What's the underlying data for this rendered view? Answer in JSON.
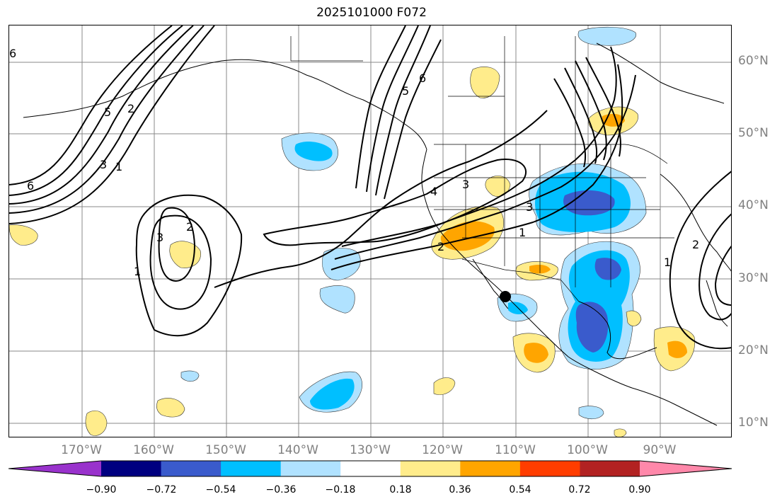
{
  "title": "2025101000 F072",
  "map": {
    "lat_labels": [
      "60°N",
      "50°N",
      "40°N",
      "30°N",
      "20°N",
      "10°N"
    ],
    "lon_labels": [
      "170°W",
      "160°W",
      "150°W",
      "140°W",
      "130°W",
      "120°W",
      "110°W",
      "100°W",
      "90°W"
    ],
    "contour_labels": [
      "6",
      "5",
      "4",
      "3",
      "2",
      "1"
    ],
    "colors": {
      "neg_090": "#9932cc",
      "neg_072": "#000080",
      "neg_054": "#3a5bcc",
      "neg_036": "#00bfff",
      "neg_018": "#b0e2ff",
      "neutral": "#ffffff",
      "pos_018": "#ffec8b",
      "pos_036": "#ffa500",
      "pos_054": "#ff3d00",
      "pos_072": "#b22222",
      "pos_090": "#ff88aa"
    }
  },
  "colorbar": {
    "ticks": [
      "−0.90",
      "−0.72",
      "−0.54",
      "−0.36",
      "−0.18",
      "0.18",
      "0.36",
      "0.54",
      "0.72",
      "0.90"
    ],
    "colors": [
      "#9932cc",
      "#000080",
      "#3a5bcc",
      "#00bfff",
      "#b0e2ff",
      "#ffffff",
      "#ffec8b",
      "#ffa500",
      "#ff3d00",
      "#b22222",
      "#ff88aa"
    ]
  }
}
